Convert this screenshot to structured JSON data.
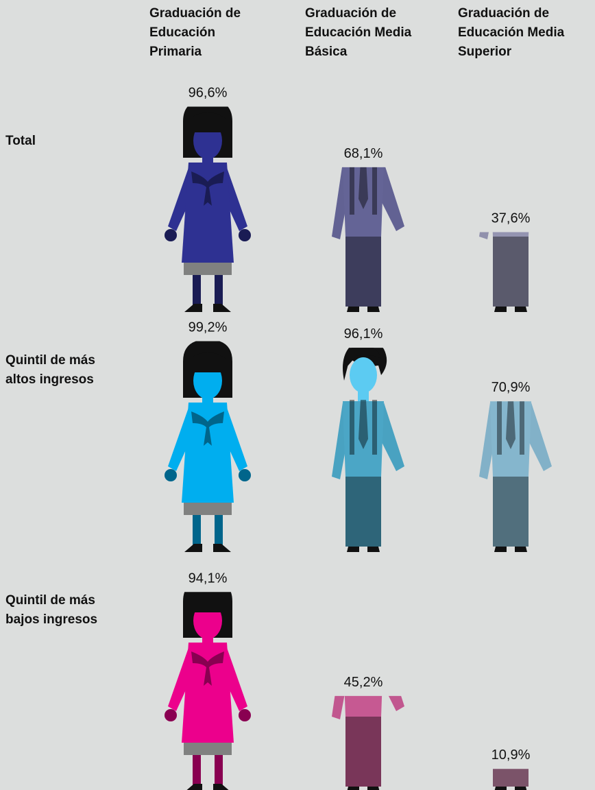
{
  "chart_data": {
    "type": "pictogram",
    "categories": [
      "Graduación de Educación Primaria",
      "Graduación de Educación Media Básica",
      "Graduación de Educación Media Superior"
    ],
    "series": [
      {
        "name": "Total",
        "colors": [
          "#2e3192",
          "#7b7bb8",
          "#b5b5d8"
        ],
        "values": [
          96.6,
          68.1,
          37.6
        ],
        "value_labels": [
          "96,6%",
          "68,1%",
          "37,6%"
        ]
      },
      {
        "name": "Quintil de más altos ingresos",
        "colors": [
          "#00aeef",
          "#5ccbf2",
          "#a3defa"
        ],
        "values": [
          99.2,
          96.1,
          70.9
        ],
        "value_labels": [
          "99,2%",
          "96,1%",
          "70,9%"
        ]
      },
      {
        "name": "Quintil de más bajos ingresos",
        "colors": [
          "#ec008c",
          "#f26db3",
          "#f7a6d3"
        ],
        "values": [
          94.1,
          45.2,
          10.9
        ],
        "value_labels": [
          "94,1%",
          "45,2%",
          "10,9%"
        ]
      }
    ]
  }
}
